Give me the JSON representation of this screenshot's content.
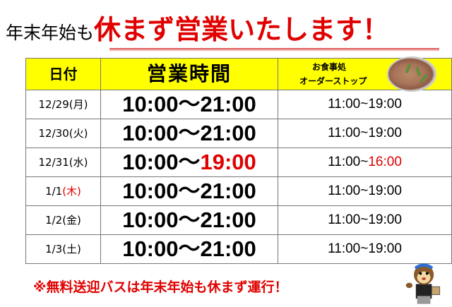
{
  "title": {
    "prefix": "年末年始も",
    "main": "休まず営業いたします！"
  },
  "table": {
    "headers": {
      "date": "日付",
      "hours": "営業時間",
      "food_line1": "お食事処",
      "food_line2": "オーダーストップ"
    },
    "rows": [
      {
        "date": "12/29",
        "day": "(月)",
        "day_color": "#000000",
        "open": "10:00〜",
        "close": "21:00",
        "close_color": "#000000",
        "food_open": "11:00~",
        "food_close": "19:00",
        "food_close_color": "#000000"
      },
      {
        "date": "12/30",
        "day": "(火)",
        "day_color": "#000000",
        "open": "10:00〜",
        "close": "21:00",
        "close_color": "#000000",
        "food_open": "11:00~",
        "food_close": "19:00",
        "food_close_color": "#000000"
      },
      {
        "date": "12/31",
        "day": "(水)",
        "day_color": "#000000",
        "open": "10:00〜",
        "close": "19:00",
        "close_color": "#e00000",
        "food_open": "11:00~",
        "food_close": "16:00",
        "food_close_color": "#e00000"
      },
      {
        "date": "1/1",
        "day": "(木)",
        "day_color": "#e00000",
        "open": "10:00〜",
        "close": "21:00",
        "close_color": "#000000",
        "food_open": "11:00~",
        "food_close": "19:00",
        "food_close_color": "#000000"
      },
      {
        "date": "1/2",
        "day": "(金)",
        "day_color": "#000000",
        "open": "10:00〜",
        "close": "21:00",
        "close_color": "#000000",
        "food_open": "11:00~",
        "food_close": "19:00",
        "food_close_color": "#000000"
      },
      {
        "date": "1/3",
        "day": "(土)",
        "day_color": "#000000",
        "open": "10:00〜",
        "close": "21:00",
        "close_color": "#000000",
        "food_open": "11:00~",
        "food_close": "19:00",
        "food_close_color": "#000000"
      }
    ]
  },
  "footer": "※無料送迎バスは年末年始も休まず運行！",
  "colors": {
    "accent_red": "#e00000",
    "header_yellow": "#ffff00"
  }
}
